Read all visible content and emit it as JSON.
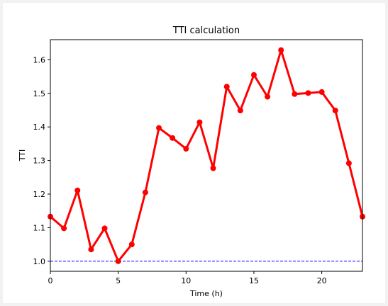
{
  "chart_data": {
    "type": "line",
    "title": "TTI calculation",
    "xlabel": "Time (h)",
    "ylabel": "TTI",
    "xlim": [
      0,
      23
    ],
    "ylim": [
      0.97,
      1.66
    ],
    "xticks": [
      0,
      5,
      10,
      15,
      20
    ],
    "xtick_labels": [
      "0",
      "5",
      "10",
      "15",
      "20"
    ],
    "yticks": [
      1.0,
      1.1,
      1.2,
      1.3,
      1.4,
      1.5,
      1.6
    ],
    "ytick_labels": [
      "1.0",
      "1.1",
      "1.2",
      "1.3",
      "1.4",
      "1.5",
      "1.6"
    ],
    "grid": false,
    "series": [
      {
        "color": "#ff0000",
        "style": "solid-with-circle-markers",
        "x": [
          0,
          1,
          2,
          3,
          4,
          5,
          6,
          7,
          8,
          9,
          10,
          11,
          12,
          13,
          14,
          15,
          16,
          17,
          18,
          19,
          20,
          21,
          22,
          23
        ],
        "y": [
          1.133,
          1.098,
          1.211,
          1.035,
          1.098,
          1.0,
          1.05,
          1.205,
          1.397,
          1.367,
          1.335,
          1.414,
          1.277,
          1.52,
          1.449,
          1.555,
          1.49,
          1.629,
          1.498,
          1.501,
          1.504,
          1.449,
          1.292,
          1.133
        ]
      }
    ],
    "reference_line": {
      "y": 1.0,
      "color": "#0000ff",
      "style": "dashed"
    }
  }
}
